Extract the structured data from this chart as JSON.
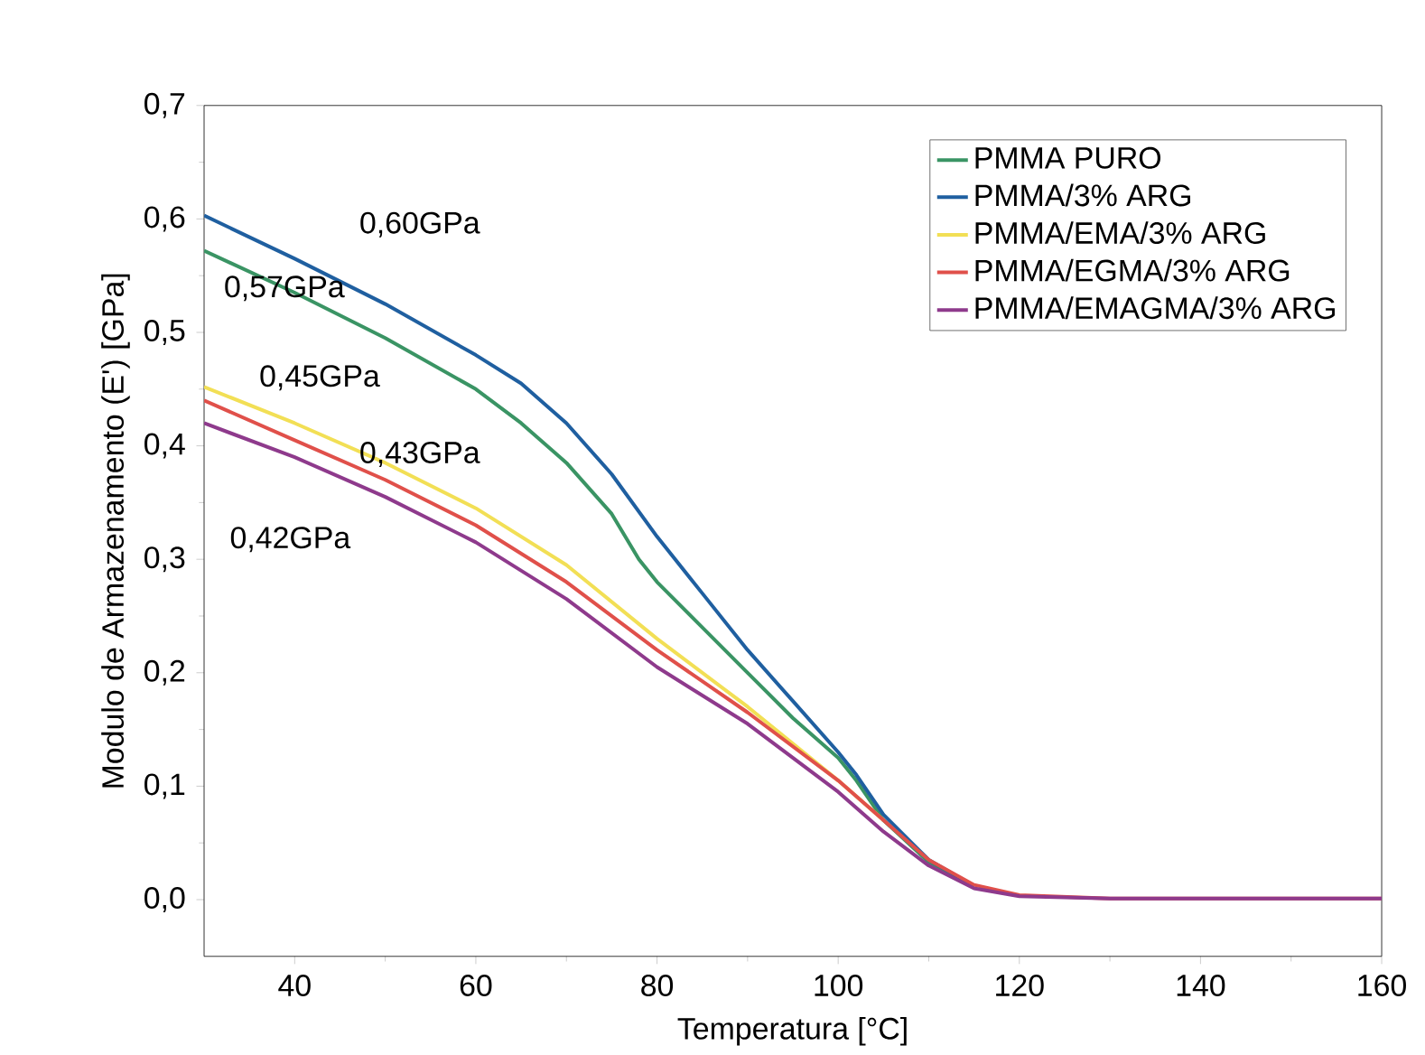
{
  "chart_data": {
    "type": "line",
    "xlabel": "Temperatura [°C]",
    "ylabel": "Modulo de Armazenamento (E') [GPa]",
    "xlim": [
      30,
      160
    ],
    "ylim": [
      -0.05,
      0.7
    ],
    "xticks": [
      40,
      60,
      80,
      100,
      120,
      140,
      160
    ],
    "yticks": [
      {
        "value": 0,
        "label": "0,0"
      },
      {
        "value": 0.1,
        "label": "0,1"
      },
      {
        "value": 0.2,
        "label": "0,2"
      },
      {
        "value": 0.3,
        "label": "0,3"
      },
      {
        "value": 0.4,
        "label": "0,4"
      },
      {
        "value": 0.5,
        "label": "0,5"
      },
      {
        "value": 0.6,
        "label": "0,6"
      },
      {
        "value": 0.7,
        "label": "0,7"
      }
    ],
    "legend": "top right",
    "grid": false,
    "marker": "none",
    "line_style": "solid",
    "series": [
      {
        "name": "PMMA PURO",
        "color": "#3a9464",
        "x": [
          30,
          40,
          50,
          60,
          65,
          70,
          75,
          78,
          80,
          85,
          90,
          95,
          100,
          102,
          105,
          110,
          115
        ],
        "values": [
          0.572,
          0.535,
          0.495,
          0.45,
          0.42,
          0.385,
          0.34,
          0.3,
          0.28,
          0.24,
          0.2,
          0.16,
          0.125,
          0.105,
          0.07,
          0.033,
          0.012
        ]
      },
      {
        "name": "PMMA/3% ARG",
        "color": "#1f5fa0",
        "x": [
          30,
          40,
          50,
          60,
          65,
          70,
          75,
          80,
          85,
          90,
          95,
          100,
          102,
          105,
          110,
          115
        ],
        "values": [
          0.603,
          0.565,
          0.525,
          0.48,
          0.455,
          0.42,
          0.375,
          0.32,
          0.27,
          0.22,
          0.175,
          0.13,
          0.11,
          0.075,
          0.035,
          0.012
        ]
      },
      {
        "name": "PMMA/EMA/3% ARG",
        "color": "#f2df55",
        "x": [
          30,
          40,
          50,
          60,
          70,
          80,
          90,
          100,
          105
        ],
        "values": [
          0.452,
          0.42,
          0.385,
          0.345,
          0.295,
          0.23,
          0.17,
          0.105,
          0.07
        ]
      },
      {
        "name": "PMMA/EGMA/3% ARG",
        "color": "#e0504a",
        "x": [
          30,
          40,
          50,
          60,
          70,
          80,
          90,
          100,
          105,
          110,
          115,
          120,
          130,
          160
        ],
        "values": [
          0.44,
          0.405,
          0.37,
          0.33,
          0.28,
          0.22,
          0.165,
          0.105,
          0.07,
          0.035,
          0.013,
          0.004,
          0.001,
          0.001
        ]
      },
      {
        "name": "PMMA/EMAGMA/3% ARG",
        "color": "#8e3a8c",
        "x": [
          30,
          40,
          50,
          60,
          70,
          80,
          90,
          100,
          105,
          110,
          115,
          120,
          130,
          160
        ],
        "values": [
          0.42,
          0.39,
          0.355,
          0.315,
          0.265,
          0.205,
          0.155,
          0.095,
          0.06,
          0.03,
          0.01,
          0.003,
          0.001,
          0.001
        ]
      }
    ],
    "annotations": [
      "0,60GPa",
      "0,57GPa",
      "0,45GPa",
      "0,43GPa",
      "0,42GPa"
    ]
  }
}
